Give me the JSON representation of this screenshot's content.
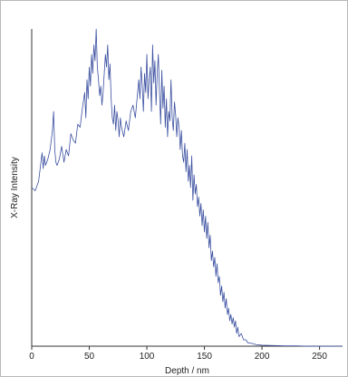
{
  "chart_data": {
    "type": "line",
    "title": "",
    "xlabel": "Depth / nm",
    "ylabel": "X-Ray Intensity",
    "xlim": [
      0,
      270
    ],
    "ylim": [
      0,
      1
    ],
    "y_ticks_shown": false,
    "grid": false,
    "x_ticks": [
      0,
      50,
      100,
      150,
      200,
      250
    ],
    "x_tick_labels": [
      "0",
      "50",
      "100",
      "150",
      "200",
      "250"
    ],
    "series": [
      {
        "color": "#3a4fa0",
        "x": [
          0,
          3,
          6,
          8,
          9,
          10,
          11,
          12,
          14,
          16,
          18,
          19,
          20,
          21,
          22,
          24,
          26,
          28,
          30,
          32,
          34,
          36,
          38,
          40,
          42,
          44,
          46,
          47,
          48,
          49,
          50,
          51,
          52,
          53,
          54,
          55,
          56,
          57,
          58,
          59,
          60,
          61,
          62,
          63,
          64,
          65,
          66,
          67,
          68,
          69,
          70,
          71,
          72,
          73,
          74,
          75,
          76,
          77,
          78,
          80,
          82,
          84,
          86,
          88,
          90,
          92,
          93,
          94,
          95,
          96,
          97,
          98,
          99,
          100,
          101,
          102,
          103,
          104,
          105,
          106,
          107,
          108,
          109,
          110,
          111,
          112,
          113,
          114,
          115,
          116,
          117,
          118,
          119,
          120,
          121,
          122,
          123,
          124,
          125,
          126,
          127,
          128,
          129,
          130,
          131,
          132,
          133,
          134,
          135,
          136,
          137,
          138,
          139,
          140,
          141,
          142,
          143,
          144,
          145,
          146,
          147,
          148,
          149,
          150,
          151,
          152,
          153,
          154,
          155,
          156,
          157,
          158,
          159,
          160,
          161,
          162,
          163,
          164,
          165,
          166,
          167,
          168,
          169,
          170,
          171,
          172,
          173,
          174,
          175,
          176,
          177,
          178,
          179,
          180,
          182,
          184,
          186,
          188,
          190,
          195,
          200,
          210,
          220,
          230,
          240,
          250,
          260,
          270
        ],
        "values": [
          0.5,
          0.49,
          0.52,
          0.58,
          0.61,
          0.56,
          0.6,
          0.57,
          0.59,
          0.62,
          0.68,
          0.74,
          0.62,
          0.58,
          0.57,
          0.59,
          0.63,
          0.58,
          0.62,
          0.6,
          0.67,
          0.65,
          0.64,
          0.7,
          0.69,
          0.75,
          0.8,
          0.72,
          0.84,
          0.78,
          0.88,
          0.82,
          0.92,
          0.86,
          0.95,
          0.9,
          1.0,
          0.88,
          0.84,
          0.79,
          0.82,
          0.76,
          0.8,
          0.86,
          0.92,
          0.88,
          0.95,
          0.84,
          0.89,
          0.78,
          0.72,
          0.7,
          0.76,
          0.68,
          0.74,
          0.71,
          0.66,
          0.72,
          0.69,
          0.66,
          0.71,
          0.68,
          0.74,
          0.76,
          0.72,
          0.8,
          0.84,
          0.78,
          0.88,
          0.82,
          0.74,
          0.86,
          0.8,
          0.92,
          0.78,
          0.84,
          0.88,
          0.74,
          0.95,
          0.83,
          0.9,
          0.76,
          0.86,
          0.92,
          0.8,
          0.7,
          0.87,
          0.75,
          0.82,
          0.69,
          0.78,
          0.66,
          0.74,
          0.71,
          0.84,
          0.72,
          0.68,
          0.77,
          0.73,
          0.66,
          0.72,
          0.69,
          0.62,
          0.68,
          0.6,
          0.58,
          0.64,
          0.55,
          0.62,
          0.52,
          0.57,
          0.5,
          0.6,
          0.46,
          0.54,
          0.48,
          0.51,
          0.44,
          0.47,
          0.41,
          0.45,
          0.38,
          0.43,
          0.36,
          0.41,
          0.34,
          0.39,
          0.31,
          0.35,
          0.27,
          0.3,
          0.25,
          0.28,
          0.22,
          0.26,
          0.2,
          0.22,
          0.16,
          0.19,
          0.14,
          0.17,
          0.12,
          0.15,
          0.1,
          0.12,
          0.08,
          0.1,
          0.07,
          0.09,
          0.06,
          0.08,
          0.04,
          0.06,
          0.03,
          0.04,
          0.02,
          0.02,
          0.01,
          0.01,
          0.005,
          0.003,
          0.002,
          0.001,
          0.001,
          0.0,
          0.0,
          0.0,
          0.0
        ]
      }
    ]
  }
}
